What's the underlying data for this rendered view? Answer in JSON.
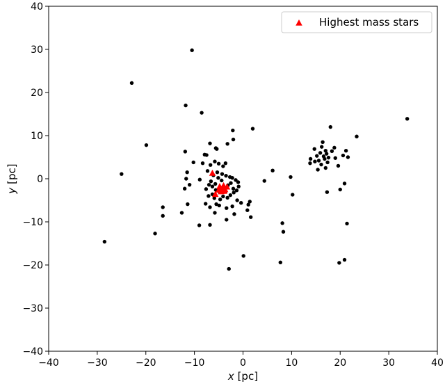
{
  "chart_data": {
    "type": "scatter",
    "xlabel_var": "x",
    "xlabel_unit": " [pc]",
    "ylabel_var": "y",
    "ylabel_unit": " [pc]",
    "xlim": [
      -40,
      40
    ],
    "ylim": [
      -40,
      40
    ],
    "x_ticks": [
      -40,
      -30,
      -20,
      -10,
      0,
      10,
      20,
      30,
      40
    ],
    "y_ticks": [
      -40,
      -30,
      -20,
      -10,
      0,
      10,
      20,
      30,
      40
    ],
    "grid": false,
    "legend_position": "upper-right",
    "series": [
      {
        "kind": "stars",
        "color": "#000000",
        "marker": "circle",
        "points": [
          [
            -10.5,
            29.8
          ],
          [
            -22.9,
            22.2
          ],
          [
            -11.8,
            17.0
          ],
          [
            -8.5,
            15.3
          ],
          [
            33.8,
            13.9
          ],
          [
            2.0,
            11.6
          ],
          [
            -2.1,
            11.2
          ],
          [
            -19.9,
            7.8
          ],
          [
            -25.0,
            1.1
          ],
          [
            -28.5,
            -14.6
          ],
          [
            -18.1,
            -12.7
          ],
          [
            -16.5,
            -6.6
          ],
          [
            -16.5,
            -8.6
          ],
          [
            -12.6,
            -7.9
          ],
          [
            -11.4,
            -5.9
          ],
          [
            -9.0,
            -10.8
          ],
          [
            -6.8,
            -10.7
          ],
          [
            -11.9,
            6.3
          ],
          [
            -10.2,
            3.8
          ],
          [
            -11.5,
            1.5
          ],
          [
            -11.7,
            0.0
          ],
          [
            -11.0,
            -1.4
          ],
          [
            -12.0,
            -2.3
          ],
          [
            -8.9,
            -0.2
          ],
          [
            -8.3,
            3.6
          ],
          [
            -7.9,
            5.6
          ],
          [
            -7.5,
            5.5
          ],
          [
            -6.8,
            8.2
          ],
          [
            -5.6,
            7.1
          ],
          [
            -5.4,
            6.9
          ],
          [
            -3.2,
            8.1
          ],
          [
            -2.0,
            9.1
          ],
          [
            -6.7,
            3.2
          ],
          [
            -5.8,
            4.0
          ],
          [
            -5.0,
            3.5
          ],
          [
            -4.1,
            2.9
          ],
          [
            -3.6,
            3.6
          ],
          [
            -7.3,
            1.8
          ],
          [
            -6.1,
            0.8
          ],
          [
            -5.3,
            1.5
          ],
          [
            -4.3,
            1.1
          ],
          [
            -3.5,
            0.7
          ],
          [
            -2.7,
            0.4
          ],
          [
            -2.2,
            0.2
          ],
          [
            -1.5,
            -0.3
          ],
          [
            -1.0,
            -0.8
          ],
          [
            -0.9,
            -1.8
          ],
          [
            -1.3,
            -2.7
          ],
          [
            -1.9,
            -3.2
          ],
          [
            -2.6,
            -3.8
          ],
          [
            -3.2,
            -4.4
          ],
          [
            -4.1,
            -4.1
          ],
          [
            -4.8,
            -3.1
          ],
          [
            -5.6,
            -2.6
          ],
          [
            -6.3,
            -1.8
          ],
          [
            -6.6,
            -0.6
          ],
          [
            -7.0,
            -1.4
          ],
          [
            -7.6,
            -2.4
          ],
          [
            -7.1,
            -4.0
          ],
          [
            -6.3,
            -3.6
          ],
          [
            -5.9,
            -4.5
          ],
          [
            -4.7,
            -4.8
          ],
          [
            -3.8,
            -2.3
          ],
          [
            -3.1,
            -1.5
          ],
          [
            -2.5,
            -1.0
          ],
          [
            -2.0,
            -2.3
          ],
          [
            -4.4,
            -0.4
          ],
          [
            -5.1,
            0.2
          ],
          [
            -5.7,
            -1.2
          ],
          [
            -3.6,
            -3.0
          ],
          [
            -7.7,
            -5.8
          ],
          [
            -6.8,
            -6.6
          ],
          [
            -5.5,
            -5.9
          ],
          [
            -4.9,
            -6.2
          ],
          [
            -3.4,
            -6.8
          ],
          [
            -2.2,
            -6.4
          ],
          [
            -1.2,
            -5.0
          ],
          [
            -0.4,
            -5.6
          ],
          [
            -1.8,
            -8.2
          ],
          [
            -3.4,
            -9.5
          ],
          [
            -5.8,
            -7.9
          ],
          [
            1.4,
            -5.3
          ],
          [
            1.1,
            -6.0
          ],
          [
            0.9,
            -7.3
          ],
          [
            1.6,
            -8.9
          ],
          [
            4.4,
            -0.5
          ],
          [
            6.1,
            1.9
          ],
          [
            9.8,
            0.4
          ],
          [
            10.2,
            -3.7
          ],
          [
            8.1,
            -10.3
          ],
          [
            8.3,
            -12.3
          ],
          [
            7.7,
            -19.4
          ],
          [
            0.1,
            -17.9
          ],
          [
            -2.9,
            -20.9
          ],
          [
            13.8,
            3.6
          ],
          [
            13.9,
            4.6
          ],
          [
            14.8,
            4.0
          ],
          [
            15.2,
            5.3
          ],
          [
            15.6,
            4.2
          ],
          [
            15.9,
            6.0
          ],
          [
            16.1,
            3.3
          ],
          [
            16.2,
            7.4
          ],
          [
            16.4,
            8.5
          ],
          [
            16.6,
            5.2
          ],
          [
            16.8,
            4.6
          ],
          [
            17.0,
            6.5
          ],
          [
            17.2,
            5.8
          ],
          [
            17.4,
            3.8
          ],
          [
            17.6,
            4.9
          ],
          [
            17.0,
            2.5
          ],
          [
            15.4,
            2.1
          ],
          [
            14.7,
            6.9
          ],
          [
            18.0,
            12.0
          ],
          [
            18.3,
            6.4
          ],
          [
            18.8,
            7.2
          ],
          [
            19.0,
            4.8
          ],
          [
            19.6,
            3.0
          ],
          [
            20.6,
            5.4
          ],
          [
            21.2,
            6.5
          ],
          [
            21.6,
            5.0
          ],
          [
            23.4,
            9.8
          ],
          [
            20.0,
            -2.5
          ],
          [
            20.9,
            -1.1
          ],
          [
            21.4,
            -10.4
          ],
          [
            19.8,
            -19.5
          ],
          [
            20.9,
            -18.8
          ],
          [
            17.3,
            -3.1
          ]
        ]
      },
      {
        "kind": "highest_mass",
        "name": "Highest mass stars",
        "color": "#ff0000",
        "marker": "triangle",
        "points": [
          [
            -6.3,
            1.3
          ],
          [
            -5.7,
            -3.6
          ],
          [
            -4.8,
            -1.8
          ],
          [
            -4.3,
            -2.2
          ],
          [
            -4.0,
            -1.6
          ],
          [
            -3.7,
            -2.5
          ],
          [
            -3.3,
            -1.9
          ],
          [
            -4.5,
            -3.0
          ],
          [
            -3.9,
            -2.9
          ],
          [
            -5.0,
            -2.6
          ]
        ]
      }
    ]
  }
}
